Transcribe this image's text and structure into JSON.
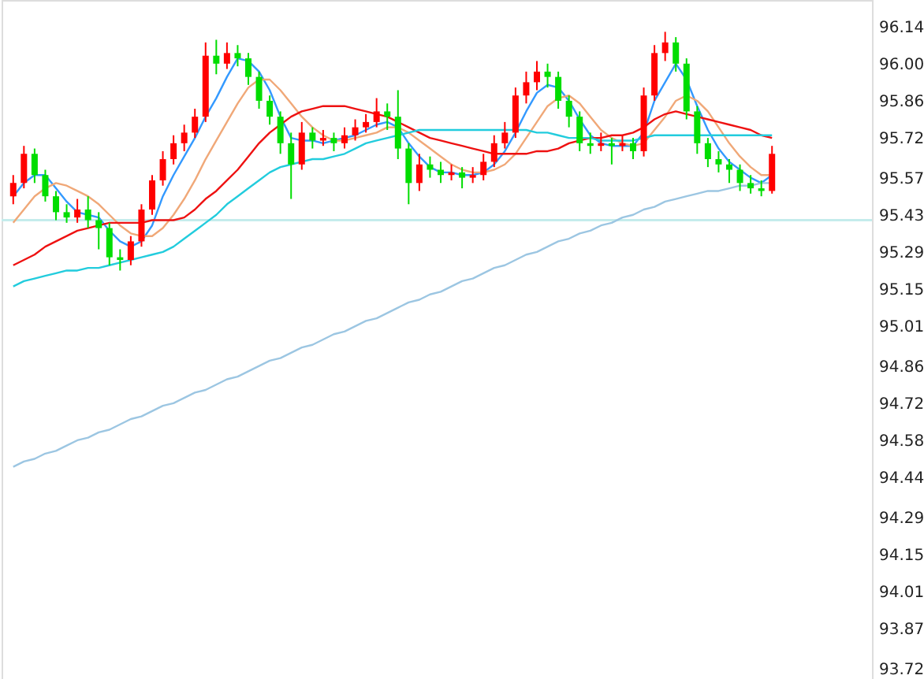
{
  "chart_data": {
    "type": "candlestick",
    "categories": [
      null,
      null,
      null,
      null,
      null,
      null,
      null,
      null,
      null,
      null,
      null,
      null,
      null,
      null,
      null,
      null,
      null,
      null,
      null,
      null,
      null,
      null,
      null,
      null,
      null,
      null,
      null,
      null,
      null,
      null,
      null,
      null,
      null,
      null,
      null,
      null,
      null,
      null,
      null,
      null,
      null,
      null,
      null,
      null,
      null,
      null,
      null,
      null,
      null,
      null,
      null,
      null,
      null,
      null,
      null,
      null,
      null,
      null,
      null,
      null,
      null,
      null,
      null,
      null,
      null,
      null,
      null,
      null,
      null,
      null,
      null,
      null
    ],
    "ohlc": [
      [
        95.5,
        95.58,
        95.47,
        95.55
      ],
      [
        95.55,
        95.69,
        95.53,
        95.66
      ],
      [
        95.66,
        95.68,
        95.55,
        95.58
      ],
      [
        95.58,
        95.6,
        95.48,
        95.5
      ],
      [
        95.5,
        95.52,
        95.41,
        95.44
      ],
      [
        95.44,
        95.47,
        95.4,
        95.42
      ],
      [
        95.42,
        95.49,
        95.4,
        95.45
      ],
      [
        95.45,
        95.5,
        95.38,
        95.41
      ],
      [
        95.41,
        95.44,
        95.3,
        95.38
      ],
      [
        95.38,
        95.4,
        95.24,
        95.27
      ],
      [
        95.27,
        95.3,
        95.22,
        95.26
      ],
      [
        95.26,
        95.35,
        95.24,
        95.33
      ],
      [
        95.33,
        95.47,
        95.31,
        95.45
      ],
      [
        95.45,
        95.58,
        95.43,
        95.56
      ],
      [
        95.56,
        95.67,
        95.54,
        95.64
      ],
      [
        95.64,
        95.73,
        95.62,
        95.7
      ],
      [
        95.7,
        95.77,
        95.67,
        95.74
      ],
      [
        95.74,
        95.83,
        95.72,
        95.8
      ],
      [
        95.8,
        96.08,
        95.78,
        96.03
      ],
      [
        96.03,
        96.09,
        95.96,
        96.0
      ],
      [
        96.0,
        96.08,
        95.98,
        96.04
      ],
      [
        96.04,
        96.07,
        95.99,
        96.02
      ],
      [
        96.02,
        96.04,
        95.92,
        95.95
      ],
      [
        95.95,
        95.97,
        95.83,
        95.86
      ],
      [
        95.86,
        95.88,
        95.77,
        95.8
      ],
      [
        95.8,
        95.82,
        95.66,
        95.7
      ],
      [
        95.7,
        95.74,
        95.49,
        95.62
      ],
      [
        95.62,
        95.78,
        95.6,
        95.74
      ],
      [
        95.74,
        95.76,
        95.68,
        95.71
      ],
      [
        95.71,
        95.75,
        95.69,
        95.72
      ],
      [
        95.72,
        95.74,
        95.67,
        95.7
      ],
      [
        95.7,
        95.76,
        95.68,
        95.73
      ],
      [
        95.73,
        95.79,
        95.71,
        95.76
      ],
      [
        95.76,
        95.81,
        95.74,
        95.78
      ],
      [
        95.78,
        95.87,
        95.76,
        95.82
      ],
      [
        95.82,
        95.85,
        95.75,
        95.8
      ],
      [
        95.8,
        95.9,
        95.64,
        95.68
      ],
      [
        95.68,
        95.7,
        95.47,
        95.55
      ],
      [
        95.55,
        95.66,
        95.52,
        95.62
      ],
      [
        95.62,
        95.65,
        95.57,
        95.6
      ],
      [
        95.6,
        95.63,
        95.55,
        95.58
      ],
      [
        95.58,
        95.62,
        95.56,
        95.59
      ],
      [
        95.59,
        95.61,
        95.53,
        95.57
      ],
      [
        95.57,
        95.61,
        95.55,
        95.58
      ],
      [
        95.58,
        95.66,
        95.56,
        95.63
      ],
      [
        95.63,
        95.73,
        95.61,
        95.7
      ],
      [
        95.7,
        95.78,
        95.68,
        95.74
      ],
      [
        95.74,
        95.91,
        95.72,
        95.88
      ],
      [
        95.88,
        95.97,
        95.85,
        95.93
      ],
      [
        95.93,
        96.01,
        95.9,
        95.97
      ],
      [
        95.97,
        96.0,
        95.91,
        95.95
      ],
      [
        95.95,
        95.97,
        95.83,
        95.86
      ],
      [
        95.86,
        95.88,
        95.76,
        95.8
      ],
      [
        95.8,
        95.82,
        95.67,
        95.7
      ],
      [
        95.7,
        95.74,
        95.66,
        95.69
      ],
      [
        95.69,
        95.74,
        95.67,
        95.7
      ],
      [
        95.7,
        95.72,
        95.62,
        95.69
      ],
      [
        95.69,
        95.73,
        95.67,
        95.7
      ],
      [
        95.7,
        95.72,
        95.64,
        95.67
      ],
      [
        95.67,
        95.91,
        95.65,
        95.88
      ],
      [
        95.88,
        96.07,
        95.86,
        96.04
      ],
      [
        96.04,
        96.12,
        96.01,
        96.08
      ],
      [
        96.08,
        96.1,
        95.97,
        96.0
      ],
      [
        96.0,
        96.02,
        95.79,
        95.82
      ],
      [
        95.82,
        95.84,
        95.66,
        95.7
      ],
      [
        95.7,
        95.72,
        95.61,
        95.64
      ],
      [
        95.64,
        95.67,
        95.59,
        95.62
      ],
      [
        95.62,
        95.64,
        95.55,
        95.6
      ],
      [
        95.6,
        95.62,
        95.52,
        95.55
      ],
      [
        95.55,
        95.58,
        95.51,
        95.53
      ],
      [
        95.53,
        95.56,
        95.5,
        95.52
      ],
      [
        95.52,
        95.69,
        95.51,
        95.66
      ]
    ],
    "colors": [
      "#ff0000",
      "#ff0000",
      "#00dd00",
      "#00dd00",
      "#00dd00",
      "#00dd00",
      "#ff0000",
      "#00dd00",
      "#00dd00",
      "#00dd00",
      "#00dd00",
      "#ff0000",
      "#ff0000",
      "#ff0000",
      "#ff0000",
      "#ff0000",
      "#ff0000",
      "#ff0000",
      "#ff0000",
      "#00dd00",
      "#ff0000",
      "#00dd00",
      "#00dd00",
      "#00dd00",
      "#00dd00",
      "#00dd00",
      "#00dd00",
      "#ff0000",
      "#00dd00",
      "#ff0000",
      "#00dd00",
      "#ff0000",
      "#ff0000",
      "#ff0000",
      "#ff0000",
      "#00dd00",
      "#00dd00",
      "#00dd00",
      "#ff0000",
      "#00dd00",
      "#00dd00",
      "#ff0000",
      "#00dd00",
      "#ff0000",
      "#ff0000",
      "#ff0000",
      "#ff0000",
      "#ff0000",
      "#ff0000",
      "#ff0000",
      "#00dd00",
      "#00dd00",
      "#00dd00",
      "#00dd00",
      "#00dd00",
      "#ff0000",
      "#00dd00",
      "#ff0000",
      "#00dd00",
      "#ff0000",
      "#ff0000",
      "#ff0000",
      "#00dd00",
      "#00dd00",
      "#00dd00",
      "#00dd00",
      "#00dd00",
      "#00dd00",
      "#00dd00",
      "#00dd00",
      "#00dd00",
      "#ff0000"
    ],
    "series": [
      {
        "type": "line",
        "color": "#3399ff",
        "values": [
          95.5,
          95.55,
          95.58,
          95.58,
          95.53,
          95.48,
          95.44,
          95.43,
          95.42,
          95.37,
          95.33,
          95.31,
          95.33,
          95.39,
          95.5,
          95.58,
          95.65,
          95.72,
          95.8,
          95.87,
          95.95,
          96.02,
          96.01,
          95.97,
          95.9,
          95.8,
          95.72,
          95.71,
          95.71,
          95.7,
          95.71,
          95.72,
          95.73,
          95.75,
          95.77,
          95.78,
          95.76,
          95.7,
          95.65,
          95.61,
          95.59,
          95.59,
          95.58,
          95.58,
          95.59,
          95.62,
          95.67,
          95.74,
          95.82,
          95.89,
          95.92,
          95.91,
          95.86,
          95.79,
          95.73,
          95.7,
          95.69,
          95.69,
          95.69,
          95.74,
          95.86,
          95.93,
          96.0,
          95.94,
          95.84,
          95.75,
          95.68,
          95.63,
          95.6,
          95.57,
          95.55,
          95.58
        ]
      },
      {
        "type": "line",
        "color": "#f0a878",
        "values": [
          95.4,
          95.45,
          95.5,
          95.53,
          95.55,
          95.54,
          95.52,
          95.5,
          95.47,
          95.43,
          95.39,
          95.36,
          95.35,
          95.35,
          95.38,
          95.43,
          95.49,
          95.56,
          95.64,
          95.71,
          95.78,
          95.85,
          95.91,
          95.94,
          95.94,
          95.9,
          95.85,
          95.8,
          95.76,
          95.73,
          95.71,
          95.71,
          95.72,
          95.73,
          95.74,
          95.76,
          95.76,
          95.74,
          95.71,
          95.68,
          95.65,
          95.62,
          95.6,
          95.59,
          95.59,
          95.6,
          95.62,
          95.66,
          95.72,
          95.78,
          95.84,
          95.87,
          95.88,
          95.85,
          95.8,
          95.75,
          95.72,
          95.7,
          95.69,
          95.7,
          95.75,
          95.8,
          95.86,
          95.88,
          95.86,
          95.82,
          95.76,
          95.7,
          95.65,
          95.61,
          95.58,
          95.58
        ]
      },
      {
        "type": "line",
        "color": "#ee1111",
        "values": [
          95.24,
          95.26,
          95.28,
          95.31,
          95.33,
          95.35,
          95.37,
          95.38,
          95.39,
          95.4,
          95.4,
          95.4,
          95.4,
          95.41,
          95.41,
          95.41,
          95.42,
          95.45,
          95.49,
          95.52,
          95.56,
          95.6,
          95.65,
          95.7,
          95.74,
          95.77,
          95.8,
          95.82,
          95.83,
          95.84,
          95.84,
          95.84,
          95.83,
          95.82,
          95.81,
          95.8,
          95.78,
          95.76,
          95.74,
          95.72,
          95.71,
          95.7,
          95.69,
          95.68,
          95.67,
          95.66,
          95.66,
          95.66,
          95.66,
          95.67,
          95.67,
          95.68,
          95.7,
          95.71,
          95.72,
          95.72,
          95.73,
          95.73,
          95.74,
          95.76,
          95.79,
          95.81,
          95.82,
          95.81,
          95.8,
          95.79,
          95.78,
          95.77,
          95.76,
          95.75,
          95.73,
          95.72
        ]
      },
      {
        "type": "line",
        "color": "#22ccdd",
        "values": [
          95.16,
          95.18,
          95.19,
          95.2,
          95.21,
          95.22,
          95.22,
          95.23,
          95.23,
          95.24,
          95.25,
          95.26,
          95.27,
          95.28,
          95.29,
          95.31,
          95.34,
          95.37,
          95.4,
          95.43,
          95.47,
          95.5,
          95.53,
          95.56,
          95.59,
          95.61,
          95.62,
          95.63,
          95.64,
          95.64,
          95.65,
          95.66,
          95.68,
          95.7,
          95.71,
          95.72,
          95.73,
          95.74,
          95.75,
          95.75,
          95.75,
          95.75,
          95.75,
          95.75,
          95.75,
          95.75,
          95.75,
          95.75,
          95.75,
          95.74,
          95.74,
          95.73,
          95.72,
          95.72,
          95.72,
          95.71,
          95.71,
          95.71,
          95.71,
          95.72,
          95.73,
          95.73,
          95.73,
          95.73,
          95.73,
          95.73,
          95.73,
          95.73,
          95.73,
          95.73,
          95.73,
          95.73
        ]
      },
      {
        "type": "line",
        "color": "#9cc6e2",
        "values": [
          94.48,
          94.5,
          94.51,
          94.53,
          94.54,
          94.56,
          94.58,
          94.59,
          94.61,
          94.62,
          94.64,
          94.66,
          94.67,
          94.69,
          94.71,
          94.72,
          94.74,
          94.76,
          94.77,
          94.79,
          94.81,
          94.82,
          94.84,
          94.86,
          94.88,
          94.89,
          94.91,
          94.93,
          94.94,
          94.96,
          94.98,
          94.99,
          95.01,
          95.03,
          95.04,
          95.06,
          95.08,
          95.1,
          95.11,
          95.13,
          95.14,
          95.16,
          95.18,
          95.19,
          95.21,
          95.23,
          95.24,
          95.26,
          95.28,
          95.29,
          95.31,
          95.33,
          95.34,
          95.36,
          95.37,
          95.39,
          95.4,
          95.42,
          95.43,
          95.45,
          95.46,
          95.48,
          95.49,
          95.5,
          95.51,
          95.52,
          95.52,
          95.53,
          95.54,
          95.54,
          95.55,
          95.55
        ]
      }
    ],
    "ref_lines": [
      {
        "axis": "y",
        "value": 95.41,
        "color": "#c4ecec"
      }
    ],
    "ylim": [
      93.68,
      96.24
    ],
    "yticks": [
      96.14,
      {
        "value": 96,
        "label": "96.00"
      },
      95.86,
      95.72,
      95.57,
      95.43,
      95.29,
      95.15,
      95.01,
      94.86,
      94.72,
      94.58,
      94.44,
      94.29,
      94.15,
      94.01,
      93.87,
      93.72
    ],
    "tick_labels": "y",
    "grid": false
  }
}
